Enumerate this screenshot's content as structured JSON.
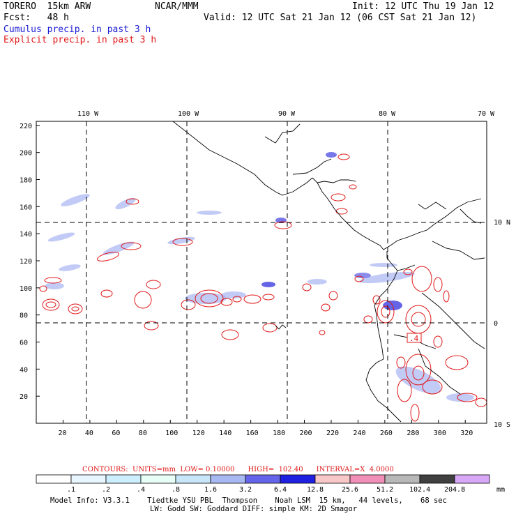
{
  "header": {
    "model": "TORERO  15km ARW",
    "org": "NCAR/MMM",
    "init": "Init: 12 UTC Thu 19 Jan 12",
    "fcst": "Fcst:   48 h",
    "valid": "Valid: 12 UTC Sat 21 Jan 12 (06 CST Sat 21 Jan 12)",
    "cumulus": "Cumulus precip. in past 3 h",
    "explicit": "Explicit precip. in past 3 h"
  },
  "map": {
    "lon_labels": [
      "110 W",
      "100 W",
      "90 W",
      "80 W",
      "70 W"
    ],
    "lat_labels": [
      "10 N",
      "0",
      "10 S"
    ],
    "x_ticks": [
      "20",
      "40",
      "60",
      "80",
      "100",
      "120",
      "140",
      "160",
      "180",
      "200",
      "220",
      "240",
      "260",
      "280",
      "300",
      "320"
    ],
    "y_ticks": [
      "20",
      "40",
      "60",
      "80",
      "100",
      "120",
      "140",
      "160",
      "180",
      "200",
      "220"
    ],
    "annotation": ".4"
  },
  "contours_info": {
    "text": "CONTOURS:  UNITS=mm  LOW= 0.10000      HIGH=  102.40      INTERVAL=X  4.0000"
  },
  "colorbar": {
    "labels": [
      ".1",
      ".2",
      ".4",
      ".8",
      "1.6",
      "3.2",
      "6.4",
      "12.8",
      "25.6",
      "51.2",
      "102.4",
      "204.8"
    ],
    "unit": "mm",
    "colors": [
      "#ffffff",
      "#e8f6ff",
      "#cdeeff",
      "#e8fff8",
      "#c8e6f8",
      "#a8b8f0",
      "#6464e8",
      "#2020e0",
      "#f8c8c8",
      "#f090b8",
      "#b8b8b8",
      "#404040",
      "#d8a8f8"
    ]
  },
  "footer": {
    "line1": "Model Info: V3.3.1    Tiedtke YSU PBL  Thompson    Noah LSM  15 km,   44 levels,    68 sec",
    "line2": "LW: Godd SW: Goddard DIFF: simple KM: 2D Smagor"
  },
  "legend_colors": {
    "cumulus": "#1a1ad6",
    "explicit": "#e01818"
  }
}
